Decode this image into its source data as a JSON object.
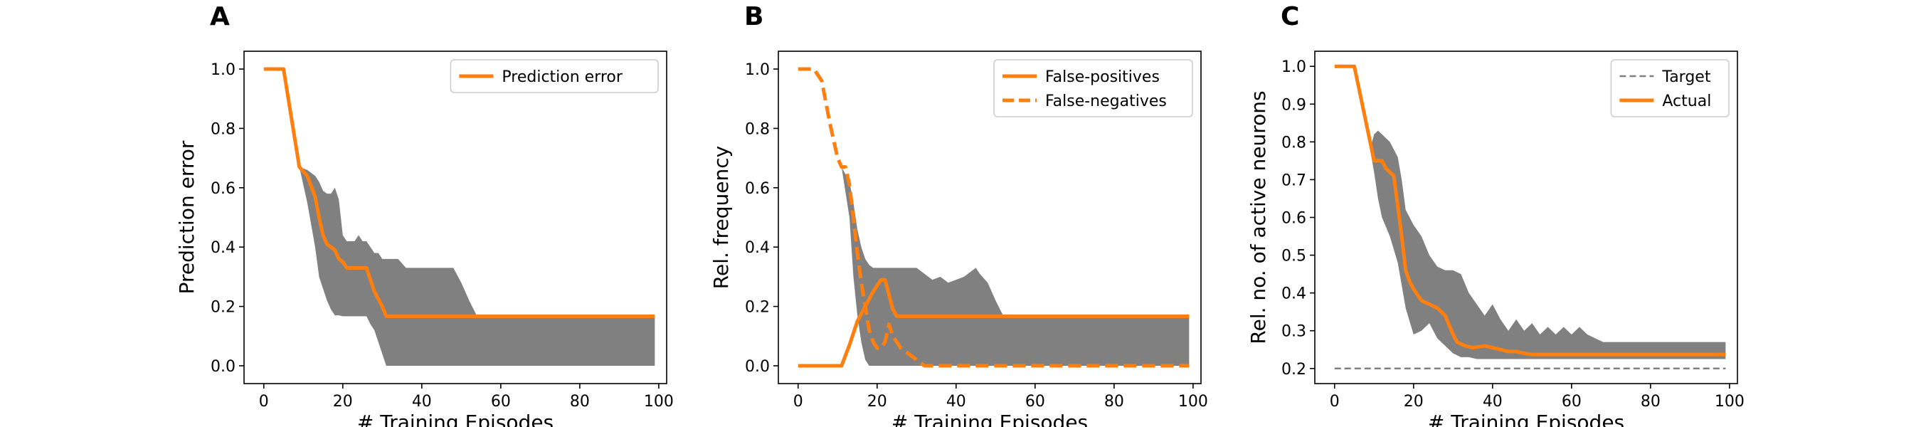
{
  "colors": {
    "line": "#ff7f0e",
    "band": "#808080",
    "target": "#808080"
  },
  "panels": [
    {
      "letter": "A",
      "ylabel": "Prediction error",
      "xlabel": "# Training Episodes",
      "xlim": [
        -5,
        102
      ],
      "ylim": [
        -0.06,
        1.06
      ],
      "xticks": [
        0,
        20,
        40,
        60,
        80,
        100
      ],
      "yticks": [
        0.0,
        0.2,
        0.4,
        0.6,
        0.8,
        1.0
      ],
      "ytick_labels": [
        "0.0",
        "0.2",
        "0.4",
        "0.6",
        "0.8",
        "1.0"
      ],
      "legend": {
        "placement": "top-right",
        "entries": [
          {
            "label": "Prediction error",
            "style": "solid"
          }
        ]
      }
    },
    {
      "letter": "B",
      "ylabel": "Rel. frequency",
      "xlabel": "# Training Episodes",
      "xlim": [
        -5,
        102
      ],
      "ylim": [
        -0.06,
        1.06
      ],
      "xticks": [
        0,
        20,
        40,
        60,
        80,
        100
      ],
      "yticks": [
        0.0,
        0.2,
        0.4,
        0.6,
        0.8,
        1.0
      ],
      "ytick_labels": [
        "0.0",
        "0.2",
        "0.4",
        "0.6",
        "0.8",
        "1.0"
      ],
      "legend": {
        "placement": "top-right",
        "entries": [
          {
            "label": "False-positives",
            "style": "solid"
          },
          {
            "label": "False-negatives",
            "style": "dashed"
          }
        ]
      }
    },
    {
      "letter": "C",
      "ylabel": "Rel. no. of active neurons",
      "xlabel": "# Training Episodes",
      "xlim": [
        -5,
        102
      ],
      "ylim": [
        0.16,
        1.04
      ],
      "xticks": [
        0,
        20,
        40,
        60,
        80,
        100
      ],
      "yticks": [
        0.2,
        0.3,
        0.4,
        0.5,
        0.6,
        0.7,
        0.8,
        0.9,
        1.0
      ],
      "ytick_labels": [
        "0.2",
        "0.3",
        "0.4",
        "0.5",
        "0.6",
        "0.7",
        "0.8",
        "0.9",
        "1.0"
      ],
      "legend": {
        "placement": "top-right",
        "entries": [
          {
            "label": "Target",
            "style": "target"
          },
          {
            "label": "Actual",
            "style": "solid"
          }
        ]
      }
    }
  ],
  "chart_data": [
    {
      "type": "line",
      "title": "",
      "xlabel": "# Training Episodes",
      "ylabel": "Prediction error",
      "xlim": [
        -5,
        102
      ],
      "ylim": [
        -0.06,
        1.06
      ],
      "grid": false,
      "legend_placement": "top-right",
      "series": [
        {
          "name": "Prediction error",
          "style": "solid",
          "x": [
            0,
            5,
            9,
            11,
            13,
            14,
            15,
            16,
            18,
            19,
            20,
            21,
            24,
            26,
            28,
            30,
            31,
            99
          ],
          "y": [
            1.0,
            1.0,
            0.67,
            0.64,
            0.57,
            0.5,
            0.44,
            0.41,
            0.39,
            0.36,
            0.35,
            0.33,
            0.33,
            0.33,
            0.25,
            0.2,
            0.167,
            0.167
          ]
        }
      ],
      "bands": [
        {
          "label": "",
          "x": [
            9,
            11,
            13,
            14,
            15,
            16,
            17,
            18,
            19,
            20,
            21,
            22,
            23,
            24,
            25,
            26,
            27,
            28,
            29,
            30,
            31,
            34,
            36,
            38,
            40,
            44,
            48,
            50,
            52,
            54,
            99
          ],
          "upper": [
            0.67,
            0.66,
            0.64,
            0.62,
            0.59,
            0.58,
            0.58,
            0.6,
            0.56,
            0.44,
            0.42,
            0.42,
            0.42,
            0.44,
            0.42,
            0.42,
            0.4,
            0.38,
            0.38,
            0.36,
            0.36,
            0.36,
            0.33,
            0.33,
            0.33,
            0.33,
            0.33,
            0.28,
            0.22,
            0.167,
            0.167
          ],
          "lower": [
            0.67,
            0.55,
            0.4,
            0.3,
            0.26,
            0.22,
            0.19,
            0.17,
            0.17,
            0.167,
            0.167,
            0.167,
            0.167,
            0.167,
            0.167,
            0.167,
            0.14,
            0.12,
            0.08,
            0.04,
            0.0,
            0.0,
            0.0,
            0.0,
            0.0,
            0.0,
            0.0,
            0.0,
            0.0,
            0.0,
            0.0
          ]
        }
      ]
    },
    {
      "type": "line",
      "title": "",
      "xlabel": "# Training Episodes",
      "ylabel": "Rel. frequency",
      "xlim": [
        -5,
        102
      ],
      "ylim": [
        -0.06,
        1.06
      ],
      "grid": false,
      "legend_placement": "top-right",
      "series": [
        {
          "name": "False-positives",
          "style": "solid",
          "x": [
            0,
            11,
            13,
            15,
            17,
            19,
            21,
            22,
            23,
            24,
            25,
            26,
            99
          ],
          "y": [
            0.0,
            0.0,
            0.07,
            0.15,
            0.2,
            0.25,
            0.29,
            0.29,
            0.24,
            0.19,
            0.167,
            0.167,
            0.167
          ]
        },
        {
          "name": "False-negatives",
          "style": "dashed",
          "x": [
            0,
            4,
            6,
            8,
            10,
            11,
            12,
            13,
            14,
            15,
            16,
            17,
            18,
            19,
            20,
            21,
            22,
            23,
            24,
            26,
            28,
            30,
            32,
            99
          ],
          "y": [
            1.0,
            1.0,
            0.96,
            0.82,
            0.7,
            0.67,
            0.67,
            0.61,
            0.5,
            0.38,
            0.28,
            0.2,
            0.12,
            0.08,
            0.06,
            0.06,
            0.08,
            0.14,
            0.1,
            0.06,
            0.04,
            0.02,
            0.0,
            0.0
          ]
        }
      ],
      "bands": [
        {
          "label": "",
          "x": [
            11,
            13,
            14,
            15,
            16,
            17,
            18,
            19,
            20,
            22,
            24,
            26,
            28,
            30,
            32,
            34,
            36,
            38,
            40,
            42,
            44,
            45,
            46,
            48,
            50,
            52,
            99
          ],
          "upper": [
            0.67,
            0.62,
            0.55,
            0.46,
            0.4,
            0.36,
            0.34,
            0.33,
            0.33,
            0.33,
            0.33,
            0.33,
            0.33,
            0.33,
            0.31,
            0.29,
            0.3,
            0.28,
            0.29,
            0.3,
            0.32,
            0.33,
            0.31,
            0.28,
            0.22,
            0.167,
            0.167
          ],
          "lower": [
            0.67,
            0.5,
            0.3,
            0.17,
            0.08,
            0.02,
            0.0,
            0.0,
            0.0,
            0.0,
            0.0,
            0.0,
            0.0,
            0.0,
            0.0,
            0.0,
            0.0,
            0.0,
            0.0,
            0.0,
            0.0,
            0.0,
            0.0,
            0.0,
            0.0,
            0.0,
            0.0
          ]
        }
      ]
    },
    {
      "type": "line",
      "title": "",
      "xlabel": "# Training Episodes",
      "ylabel": "Rel. no. of active neurons",
      "xlim": [
        -5,
        102
      ],
      "ylim": [
        0.16,
        1.04
      ],
      "grid": false,
      "legend_placement": "top-right",
      "series": [
        {
          "name": "Target",
          "style": "target",
          "x": [
            0,
            99
          ],
          "y": [
            0.2,
            0.2
          ]
        },
        {
          "name": "Actual",
          "style": "solid",
          "x": [
            0,
            5,
            7,
            9,
            10,
            11,
            12,
            13,
            14,
            15,
            17,
            18,
            19,
            20,
            22,
            24,
            26,
            28,
            30,
            31,
            33,
            35,
            38,
            40,
            42,
            44,
            46,
            48,
            50,
            99
          ],
          "y": [
            1.0,
            1.0,
            0.9,
            0.8,
            0.75,
            0.75,
            0.75,
            0.73,
            0.72,
            0.71,
            0.55,
            0.46,
            0.43,
            0.41,
            0.38,
            0.37,
            0.36,
            0.34,
            0.29,
            0.27,
            0.26,
            0.255,
            0.26,
            0.255,
            0.25,
            0.245,
            0.245,
            0.24,
            0.237,
            0.237
          ]
        }
      ],
      "bands": [
        {
          "label": "",
          "x": [
            9,
            10,
            11,
            12,
            14,
            16,
            17,
            18,
            20,
            22,
            24,
            26,
            28,
            30,
            32,
            34,
            36,
            38,
            40,
            42,
            44,
            46,
            48,
            50,
            52,
            54,
            56,
            58,
            60,
            62,
            64,
            66,
            68,
            99
          ],
          "upper": [
            0.78,
            0.82,
            0.83,
            0.82,
            0.8,
            0.76,
            0.7,
            0.62,
            0.58,
            0.55,
            0.5,
            0.47,
            0.46,
            0.46,
            0.45,
            0.4,
            0.37,
            0.34,
            0.37,
            0.33,
            0.3,
            0.33,
            0.3,
            0.32,
            0.29,
            0.31,
            0.29,
            0.31,
            0.29,
            0.31,
            0.29,
            0.28,
            0.27,
            0.27
          ],
          "lower": [
            0.78,
            0.72,
            0.65,
            0.6,
            0.55,
            0.48,
            0.42,
            0.36,
            0.29,
            0.3,
            0.32,
            0.28,
            0.26,
            0.24,
            0.23,
            0.23,
            0.225,
            0.225,
            0.225,
            0.225,
            0.225,
            0.225,
            0.225,
            0.225,
            0.225,
            0.225,
            0.225,
            0.225,
            0.225,
            0.225,
            0.225,
            0.225,
            0.225,
            0.225
          ]
        }
      ]
    }
  ]
}
